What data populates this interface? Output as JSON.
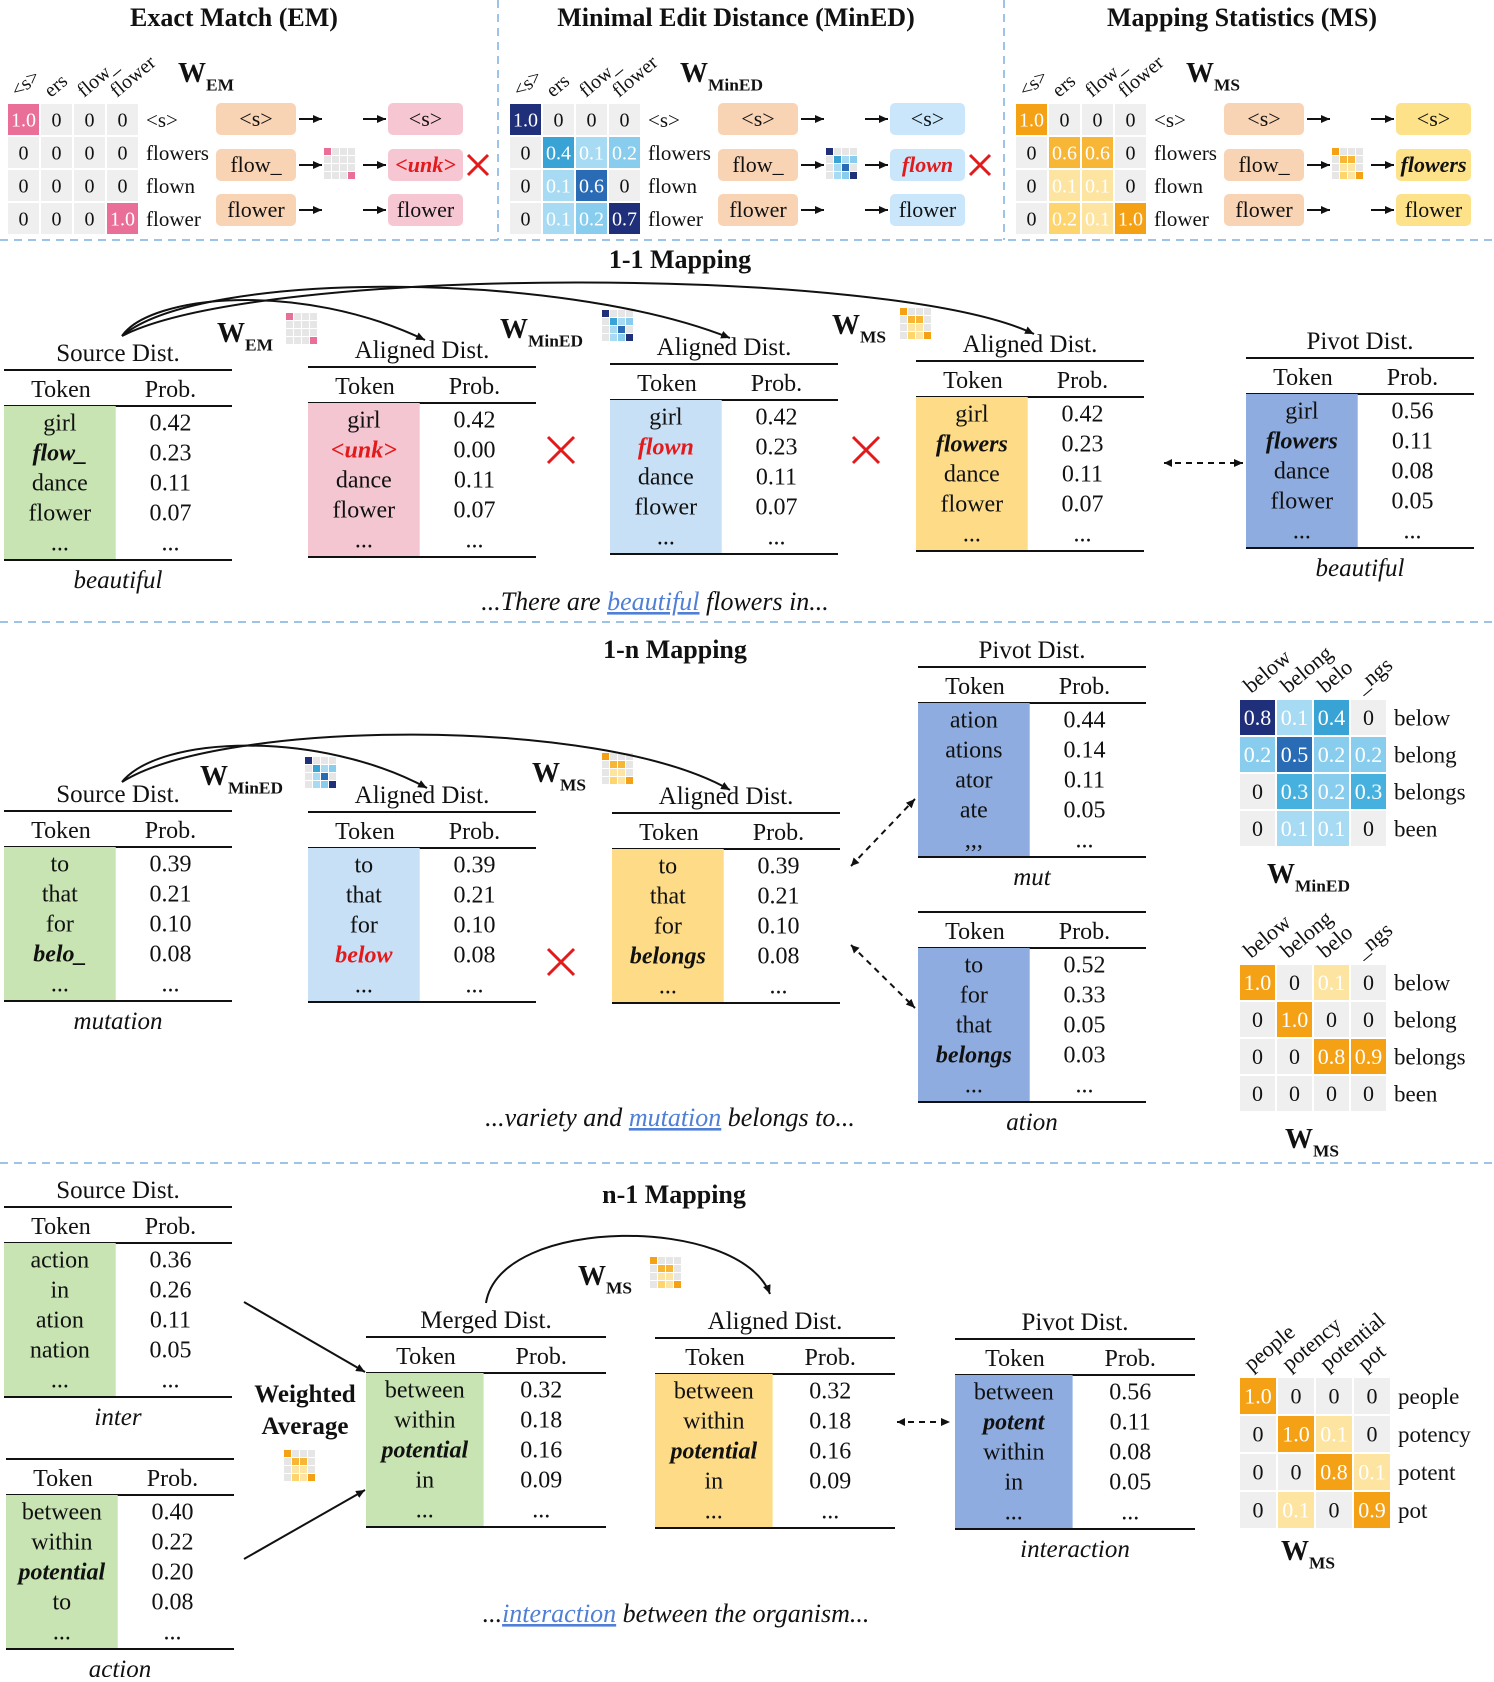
{
  "colors": {
    "green": "#c7e4b2",
    "pink": "#f4c6d1",
    "lightblue": "#c8e0f6",
    "yellow": "#fddb87",
    "pivot": "#8eacdf",
    "tokenOrange": "#f8d3b4",
    "tokenPink": "#f6c7d3",
    "tokenBlue": "#c9e6fb",
    "tokenYellow": "#fee28a",
    "red": "#e31a1c",
    "link": "#4f7fd6",
    "divider": "#9dc3e6"
  },
  "top": {
    "sections": [
      {
        "title": "Exact Match (EM)",
        "w": "W",
        "sub": "EM",
        "style": "em",
        "cols": [
          "<s>",
          "ers",
          "flow_",
          "flower"
        ],
        "rows": [
          "<s>",
          "flowers",
          "flown",
          "flower"
        ],
        "cells": [
          [
            "1.0",
            "0",
            "0",
            "0"
          ],
          [
            "0",
            "0",
            "0",
            "0"
          ],
          [
            "0",
            "0",
            "0",
            "0"
          ],
          [
            "0",
            "0",
            "0",
            "1.0"
          ]
        ],
        "heat": [
          [
            1,
            0,
            0,
            0
          ],
          [
            0,
            0,
            0,
            0
          ],
          [
            0,
            0,
            0,
            0
          ],
          [
            0,
            0,
            0,
            1
          ]
        ],
        "inTokens": [
          "<s>",
          "flow_",
          "flower"
        ],
        "outTokens": [
          "<s>",
          "<unk>",
          "flower"
        ],
        "wrong": true,
        "bad": 1
      },
      {
        "title": "Minimal Edit Distance (MinED)",
        "w": "W",
        "sub": "MinED",
        "style": "mined",
        "cols": [
          "<s>",
          "ers",
          "flow_",
          "flower"
        ],
        "rows": [
          "<s>",
          "flowers",
          "flown",
          "flower"
        ],
        "cells": [
          [
            "1.0",
            "0",
            "0",
            "0"
          ],
          [
            "0",
            "0.4",
            "0.1",
            "0.2"
          ],
          [
            "0",
            "0.1",
            "0.6",
            "0"
          ],
          [
            "0",
            "0.1",
            "0.2",
            "0.7"
          ]
        ],
        "heat": [
          [
            1,
            0,
            0,
            0
          ],
          [
            0,
            0.4,
            0.1,
            0.2
          ],
          [
            0,
            0.1,
            0.6,
            0
          ],
          [
            0,
            0.1,
            0.2,
            0.7
          ]
        ],
        "inTokens": [
          "<s>",
          "flow_",
          "flower"
        ],
        "outTokens": [
          "<s>",
          "flown",
          "flower"
        ],
        "wrong": true,
        "bad": 1
      },
      {
        "title": "Mapping Statistics (MS)",
        "w": "W",
        "sub": "MS",
        "style": "ms",
        "cols": [
          "<s>",
          "ers",
          "flow_",
          "flower"
        ],
        "rows": [
          "<s>",
          "flowers",
          "flown",
          "flower"
        ],
        "cells": [
          [
            "1.0",
            "0",
            "0",
            "0"
          ],
          [
            "0",
            "0.6",
            "0.6",
            "0"
          ],
          [
            "0",
            "0.1",
            "0.1",
            "0"
          ],
          [
            "0",
            "0.2",
            "0.1",
            "1.0"
          ]
        ],
        "heat": [
          [
            1,
            0,
            0,
            0
          ],
          [
            0,
            0.6,
            0.6,
            0
          ],
          [
            0,
            0.1,
            0.1,
            0
          ],
          [
            0,
            0.2,
            0.1,
            1
          ]
        ],
        "inTokens": [
          "<s>",
          "flow_",
          "flower"
        ],
        "outTokens": [
          "<s>",
          "flowers",
          "flower"
        ],
        "wrong": false,
        "bad": 1
      }
    ]
  },
  "s11": {
    "title": "1-1 Mapping",
    "sentence": {
      "pre": "...There are ",
      "link": "beautiful",
      "post": " flowers in..."
    },
    "headers": {
      "token": "Token",
      "prob": "Prob."
    },
    "tables": [
      {
        "title": "Source Dist.",
        "color": "green",
        "tokens": [
          "girl",
          "flow_",
          "dance",
          "flower",
          "..."
        ],
        "probs": [
          "0.42",
          "0.23",
          "0.11",
          "0.07",
          "..."
        ],
        "emph": 1,
        "emphRed": false,
        "footer": "beautiful"
      },
      {
        "title": "Aligned Dist.",
        "color": "pink",
        "tokens": [
          "girl",
          "<unk>",
          "dance",
          "flower",
          "..."
        ],
        "probs": [
          "0.42",
          "0.00",
          "0.11",
          "0.07",
          "..."
        ],
        "emph": 1,
        "emphRed": true,
        "footer": ""
      },
      {
        "title": "Aligned Dist.",
        "color": "lightblue",
        "tokens": [
          "girl",
          "flown",
          "dance",
          "flower",
          "..."
        ],
        "probs": [
          "0.42",
          "0.23",
          "0.11",
          "0.07",
          "..."
        ],
        "emph": 1,
        "emphRed": true,
        "footer": ""
      },
      {
        "title": "Aligned Dist.",
        "color": "yellow",
        "tokens": [
          "girl",
          "flowers",
          "dance",
          "flower",
          "..."
        ],
        "probs": [
          "0.42",
          "0.23",
          "0.11",
          "0.07",
          "..."
        ],
        "emph": 1,
        "emphRed": false,
        "footer": ""
      },
      {
        "title": "Pivot Dist.",
        "color": "pivot",
        "tokens": [
          "girl",
          "flowers",
          "dance",
          "flower",
          "..."
        ],
        "probs": [
          "0.56",
          "0.11",
          "0.08",
          "0.05",
          "..."
        ],
        "emph": 1,
        "emphRed": false,
        "footer": "beautiful"
      }
    ],
    "wlabels": [
      {
        "w": "W",
        "sub": "EM"
      },
      {
        "w": "W",
        "sub": "MinED"
      },
      {
        "w": "W",
        "sub": "MS"
      }
    ]
  },
  "s1n": {
    "title": "1-n Mapping",
    "sentence": {
      "pre": "...variety and ",
      "link": "mutation",
      "post": " belongs to..."
    },
    "tables": [
      {
        "title": "Source Dist.",
        "color": "green",
        "tokens": [
          "to",
          "that",
          "for",
          "belo_",
          "..."
        ],
        "probs": [
          "0.39",
          "0.21",
          "0.10",
          "0.08",
          "..."
        ],
        "emph": 3,
        "emphRed": false,
        "footer": "mutation"
      },
      {
        "title": "Aligned Dist.",
        "color": "lightblue",
        "tokens": [
          "to",
          "that",
          "for",
          "below",
          "..."
        ],
        "probs": [
          "0.39",
          "0.21",
          "0.10",
          "0.08",
          "..."
        ],
        "emph": 3,
        "emphRed": true,
        "footer": ""
      },
      {
        "title": "Aligned Dist.",
        "color": "yellow",
        "tokens": [
          "to",
          "that",
          "for",
          "belongs",
          "..."
        ],
        "probs": [
          "0.39",
          "0.21",
          "0.10",
          "0.08",
          "..."
        ],
        "emph": 3,
        "emphRed": false,
        "footer": ""
      },
      {
        "title": "Pivot Dist.",
        "color": "pivot",
        "tokens": [
          "ation",
          "ations",
          "ator",
          "ate",
          ",,,"
        ],
        "probs": [
          "0.44",
          "0.14",
          "0.11",
          "0.05",
          "..."
        ],
        "emph": -1,
        "emphRed": false,
        "footer": "mut"
      },
      {
        "title": "",
        "color": "pivot",
        "tokens": [
          "to",
          "for",
          "that",
          "belongs",
          "..."
        ],
        "probs": [
          "0.52",
          "0.33",
          "0.05",
          "0.03",
          "..."
        ],
        "emph": 3,
        "emphRed": false,
        "footer": "ation"
      }
    ],
    "wlabels": [
      {
        "w": "W",
        "sub": "MinED"
      },
      {
        "w": "W",
        "sub": "MS"
      }
    ],
    "matrices": [
      {
        "w": "W",
        "sub": "MinED",
        "style": "mined",
        "cols": [
          "below",
          "belong",
          "belo",
          "_ngs"
        ],
        "rows": [
          "below",
          "belong",
          "belongs",
          "been"
        ],
        "cells": [
          [
            "0.8",
            "0.1",
            "0.4",
            "0"
          ],
          [
            "0.2",
            "0.5",
            "0.2",
            "0.2"
          ],
          [
            "0",
            "0.3",
            "0.2",
            "0.3"
          ],
          [
            "0",
            "0.1",
            "0.1",
            "0"
          ]
        ],
        "heat": [
          [
            0.8,
            0.1,
            0.4,
            0
          ],
          [
            0.2,
            0.5,
            0.2,
            0.2
          ],
          [
            0,
            0.3,
            0.2,
            0.3
          ],
          [
            0,
            0.1,
            0.1,
            0
          ]
        ]
      },
      {
        "w": "W",
        "sub": "MS",
        "style": "ms",
        "cols": [
          "below",
          "belong",
          "belo",
          "_ngs"
        ],
        "rows": [
          "below",
          "belong",
          "belongs",
          "been"
        ],
        "cells": [
          [
            "1.0",
            "0",
            "0.1",
            "0"
          ],
          [
            "0",
            "1.0",
            "0",
            "0"
          ],
          [
            "0",
            "0",
            "0.8",
            "0.9"
          ],
          [
            "0",
            "0",
            "0",
            "0"
          ]
        ],
        "heat": [
          [
            1,
            0,
            0.1,
            0
          ],
          [
            0,
            1,
            0,
            0
          ],
          [
            0,
            0,
            0.8,
            0.9
          ],
          [
            0,
            0,
            0,
            0
          ]
        ]
      }
    ]
  },
  "sn1": {
    "title": "n-1 Mapping",
    "sentence": {
      "pre": "...",
      "link": "interaction",
      "post": " between the organism..."
    },
    "weighted": [
      "Weighted",
      "Average"
    ],
    "tables": [
      {
        "title": "Source Dist.",
        "color": "green",
        "tokens": [
          "action",
          "in",
          "ation",
          "nation",
          "..."
        ],
        "probs": [
          "0.36",
          "0.26",
          "0.11",
          "0.05",
          "..."
        ],
        "emph": -1,
        "emphRed": false,
        "footer": "inter"
      },
      {
        "title": "",
        "color": "green",
        "tokens": [
          "between",
          "within",
          "potential",
          "to",
          "..."
        ],
        "probs": [
          "0.40",
          "0.22",
          "0.20",
          "0.08",
          "..."
        ],
        "emph": 2,
        "emphRed": false,
        "footer": "action"
      },
      {
        "title": "Merged Dist.",
        "color": "green",
        "tokens": [
          "between",
          "within",
          "potential",
          "in",
          "..."
        ],
        "probs": [
          "0.32",
          "0.18",
          "0.16",
          "0.09",
          "..."
        ],
        "emph": 2,
        "emphRed": false,
        "footer": ""
      },
      {
        "title": "Aligned Dist.",
        "color": "yellow",
        "tokens": [
          "between",
          "within",
          "potential",
          "in",
          "..."
        ],
        "probs": [
          "0.32",
          "0.18",
          "0.16",
          "0.09",
          "..."
        ],
        "emph": 2,
        "emphRed": false,
        "footer": ""
      },
      {
        "title": "Pivot Dist.",
        "color": "pivot",
        "tokens": [
          "between",
          "potent",
          "within",
          "in",
          "..."
        ],
        "probs": [
          "0.56",
          "0.11",
          "0.08",
          "0.05",
          "..."
        ],
        "emph": 1,
        "emphRed": false,
        "footer": "interaction"
      }
    ],
    "wlabel": {
      "w": "W",
      "sub": "MS"
    },
    "matrix": {
      "w": "W",
      "sub": "MS",
      "style": "ms",
      "cols": [
        "people",
        "potency",
        "potential",
        "pot"
      ],
      "rows": [
        "people",
        "potency",
        "potent",
        "pot"
      ],
      "cells": [
        [
          "1.0",
          "0",
          "0",
          "0"
        ],
        [
          "0",
          "1.0",
          "0.1",
          "0"
        ],
        [
          "0",
          "0",
          "0.8",
          "0.1"
        ],
        [
          "0",
          "0.1",
          "0",
          "0.9"
        ]
      ],
      "heat": [
        [
          1,
          0,
          0,
          0
        ],
        [
          0,
          1,
          0.1,
          0
        ],
        [
          0,
          0,
          0.8,
          0.1
        ],
        [
          0,
          0.1,
          0,
          0.9
        ]
      ]
    }
  }
}
